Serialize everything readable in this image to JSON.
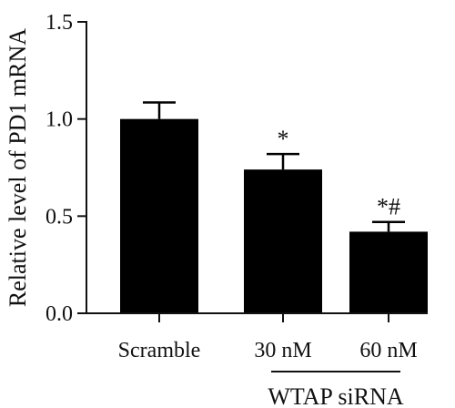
{
  "chart_data": {
    "type": "bar",
    "title": "",
    "xlabel": "",
    "ylabel": "Relative level of PD1 mRNA",
    "ylim": [
      0,
      1.5
    ],
    "yticks": [
      {
        "value": 0.0,
        "label": "0.0"
      },
      {
        "value": 0.5,
        "label": "0.5"
      },
      {
        "value": 1.0,
        "label": "1.0"
      },
      {
        "value": 1.5,
        "label": "1.5"
      }
    ],
    "categories": [
      "Scramble",
      "30 nM",
      "60 nM"
    ],
    "values": [
      1.0,
      0.74,
      0.42
    ],
    "errors": [
      0.085,
      0.08,
      0.05
    ],
    "annotations": [
      "",
      "*",
      "*#"
    ],
    "group_label": "WTAP siRNA",
    "grid": false,
    "bar_color": "#000000"
  }
}
